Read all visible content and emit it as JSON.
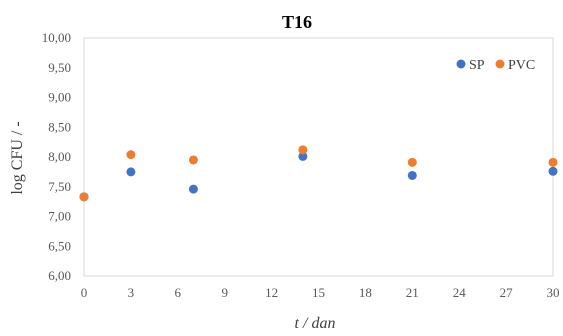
{
  "chart_data": {
    "type": "scatter",
    "title": "T16",
    "xlabel": "t / dan",
    "ylabel": "log CFU / -",
    "xlim": [
      0,
      30
    ],
    "ylim": [
      6.0,
      10.0
    ],
    "x_ticks": [
      0,
      3,
      6,
      9,
      12,
      15,
      18,
      21,
      24,
      27,
      30
    ],
    "y_ticks": [
      6.0,
      6.5,
      7.0,
      7.5,
      8.0,
      8.5,
      9.0,
      9.5,
      10.0
    ],
    "x_tick_labels": [
      "0",
      "3",
      "6",
      "9",
      "12",
      "15",
      "18",
      "21",
      "24",
      "27",
      "30"
    ],
    "y_tick_labels": [
      "6,00",
      "6,50",
      "7,00",
      "7,50",
      "8,00",
      "8,50",
      "9,00",
      "9,50",
      "10,00"
    ],
    "grid": false,
    "legend_position": "top-right",
    "series": [
      {
        "name": "SP",
        "color": "#4472C4",
        "points": [
          [
            0,
            7.33
          ],
          [
            3,
            7.75
          ],
          [
            7,
            7.46
          ],
          [
            14,
            8.01
          ],
          [
            21,
            7.69
          ],
          [
            30,
            7.76
          ]
        ]
      },
      {
        "name": "PVC",
        "color": "#ED7D31",
        "points": [
          [
            0,
            7.33
          ],
          [
            3,
            8.04
          ],
          [
            7,
            7.95
          ],
          [
            14,
            8.12
          ],
          [
            21,
            7.91
          ],
          [
            30,
            7.91
          ]
        ]
      }
    ]
  }
}
